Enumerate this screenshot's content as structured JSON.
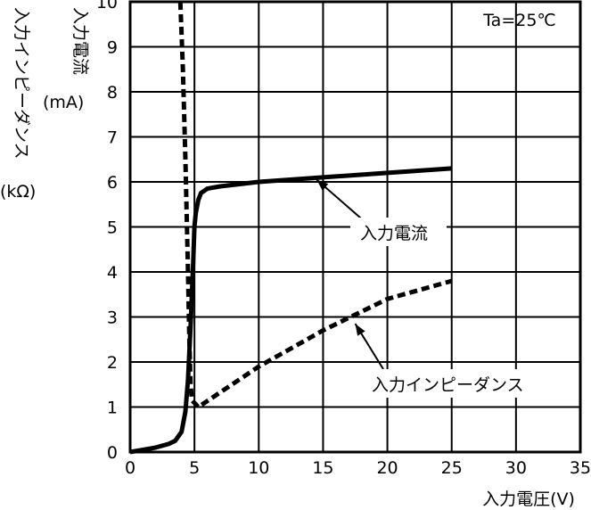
{
  "chart_data": {
    "type": "line",
    "condition": "Ta=25℃",
    "xlabel": "入力電圧(V)",
    "ylabel_lines": [
      "入力電流",
      "(mA)"
    ],
    "ylabel2_lines": [
      "入力インピーダンス",
      "(kΩ)"
    ],
    "xlim": [
      0,
      35
    ],
    "ylim": [
      0,
      10
    ],
    "x_ticks": [
      0,
      5,
      10,
      15,
      20,
      25,
      30,
      35
    ],
    "y_ticks": [
      0,
      1,
      2,
      3,
      4,
      5,
      6,
      7,
      8,
      9,
      10
    ],
    "x_tick_labels": [
      "0",
      "5",
      "10",
      "15",
      "20",
      "25",
      "30",
      "35"
    ],
    "y_tick_labels": [
      "0",
      "1",
      "2",
      "3",
      "4",
      "5",
      "6",
      "7",
      "8",
      "9",
      "10"
    ],
    "grid": true,
    "series": [
      {
        "name": "入力電流",
        "style": "solid",
        "x": [
          0,
          1,
          2,
          3,
          3.5,
          4,
          4.3,
          4.5,
          4.7,
          4.9,
          5.0,
          5.1,
          5.3,
          5.5,
          6,
          7,
          10,
          15,
          20,
          25
        ],
        "y": [
          0,
          0.05,
          0.1,
          0.18,
          0.25,
          0.45,
          0.9,
          1.6,
          2.8,
          4.2,
          5.0,
          5.3,
          5.6,
          5.75,
          5.85,
          5.9,
          6.0,
          6.1,
          6.2,
          6.3
        ]
      },
      {
        "name": "入力インピーダンス",
        "style": "dashed",
        "x": [
          3.9,
          4.1,
          4.3,
          4.5,
          4.6,
          4.7,
          4.8,
          5.3,
          10,
          15,
          20,
          25
        ],
        "y": [
          10,
          8.5,
          6.5,
          4.0,
          2.5,
          1.5,
          1.15,
          1.0,
          1.9,
          2.7,
          3.4,
          3.8
        ]
      }
    ],
    "annotations": [
      {
        "text": "入力電流",
        "target_x": 14.5,
        "target_y": 6.05
      },
      {
        "text": "入力インピーダンス",
        "target_x": 17.5,
        "target_y": 2.85
      }
    ]
  }
}
